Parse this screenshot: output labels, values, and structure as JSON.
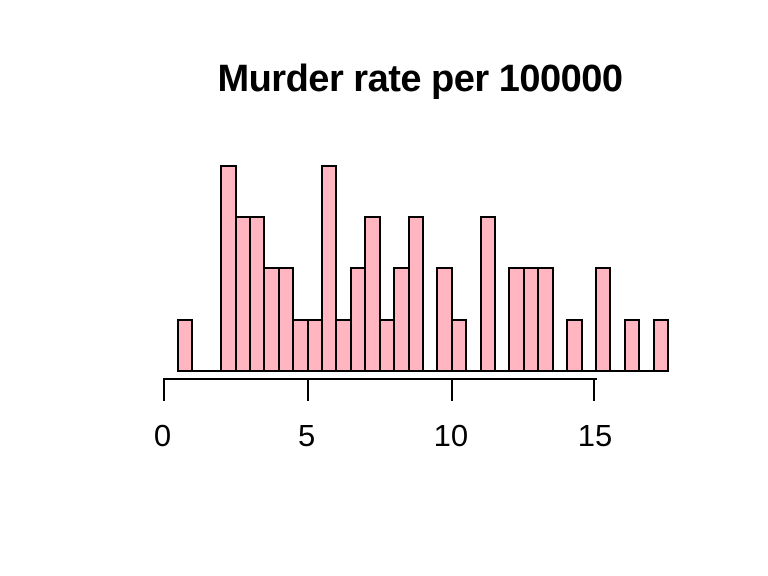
{
  "chart_data": {
    "type": "bar",
    "subtype": "histogram",
    "title": "Murder rate per 100000",
    "bin_start": 0.5,
    "bin_width": 0.5,
    "counts": [
      1,
      0,
      0,
      4,
      3,
      3,
      2,
      2,
      1,
      1,
      4,
      1,
      2,
      3,
      1,
      2,
      3,
      0,
      2,
      1,
      0,
      3,
      0,
      2,
      2,
      2,
      0,
      1,
      0,
      2,
      0,
      1,
      0,
      1
    ],
    "total_observations": 50,
    "x_ticks": [
      0,
      5,
      10,
      15
    ],
    "x_tick_labels": [
      "0",
      "5",
      "10",
      "15"
    ],
    "xlim": [
      0,
      17.5
    ],
    "ylim": [
      0,
      4
    ],
    "grid": false,
    "legend": false,
    "y_axis_shown": false,
    "bar_fill": "#FFB6C1",
    "bar_border": "#000000",
    "axis_color": "#000000",
    "title_color": "#000000",
    "background": "#FFFFFF"
  }
}
